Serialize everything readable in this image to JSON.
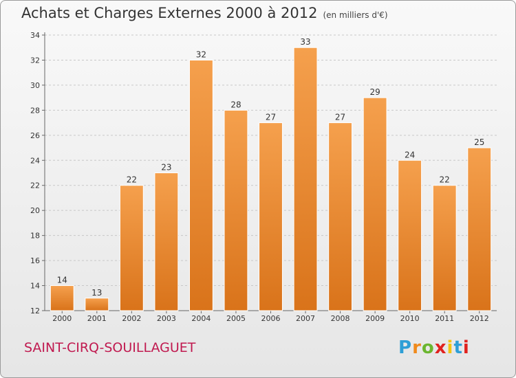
{
  "chart_data": {
    "type": "bar",
    "title": "Achats et Charges Externes 2000 à 2012",
    "subtitle": "(en milliers d'€)",
    "categories": [
      "2000",
      "2001",
      "2002",
      "2003",
      "2004",
      "2005",
      "2006",
      "2007",
      "2008",
      "2009",
      "2010",
      "2011",
      "2012"
    ],
    "values": [
      14,
      13,
      22,
      23,
      32,
      28,
      27,
      33,
      27,
      29,
      24,
      22,
      25
    ],
    "ylim": [
      12,
      34
    ],
    "yticks": [
      12,
      14,
      16,
      18,
      20,
      22,
      24,
      26,
      28,
      30,
      32,
      34
    ],
    "grid": true,
    "bar_color": "#f5a04d",
    "bar_color_dark": "#d9731a"
  },
  "footer": {
    "commune": "SAINT-CIRQ-SOUILLAGUET",
    "logo_letters": [
      "P",
      "r",
      "o",
      "x",
      "i",
      "t",
      "i"
    ],
    "logo_colors": [
      "#2e9fd6",
      "#f08a1c",
      "#6bb62f",
      "#e0221f",
      "#f3c412",
      "#2e9fd6",
      "#e0221f"
    ]
  }
}
